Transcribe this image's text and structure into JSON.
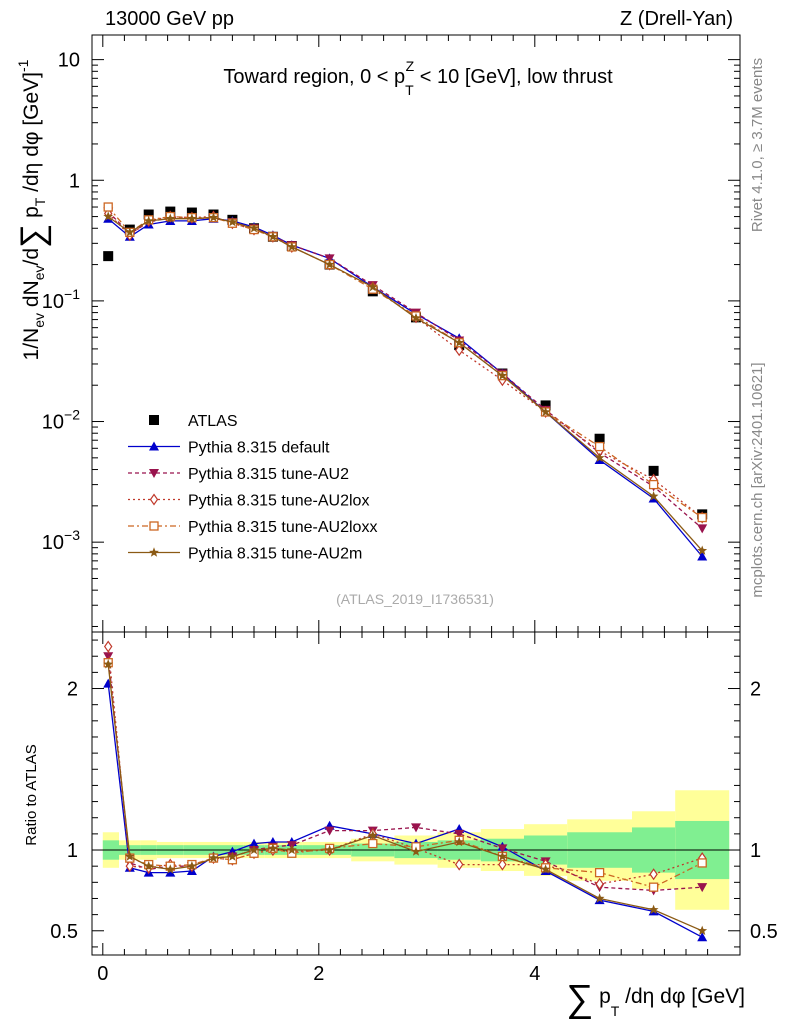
{
  "header": {
    "left": "13000 GeV pp",
    "right": "Z (Drell-Yan)"
  },
  "side_labels": {
    "rivet": "Rivet 4.1.0, ≥ 3.7M events",
    "mcplots": "mcplots.cern.ch [arXiv:2401.10621]"
  },
  "chart_data": [
    {
      "type": "line",
      "panel": "main",
      "title": "Toward region, 0 < p_T^Z < 10 [GeV], low thrust",
      "ylabel": "1/N_ev dN_ev/d Σ p_T /dη dφ [GeV]^-1",
      "yscale": "log",
      "xlim": [
        -0.1,
        5.9
      ],
      "ylim": [
        0.00018,
        16
      ],
      "y_ticks": [
        {
          "value": 0.001,
          "label": "10^-3",
          "base": "10",
          "exp": "−3"
        },
        {
          "value": 0.01,
          "label": "10^-2",
          "base": "10",
          "exp": "−2"
        },
        {
          "value": 0.1,
          "label": "10^-1",
          "base": "10",
          "exp": "−1"
        },
        {
          "value": 1,
          "label": "1",
          "base": "1",
          "exp": ""
        },
        {
          "value": 10,
          "label": "10",
          "base": "10",
          "exp": ""
        }
      ],
      "x": [
        0.05,
        0.25,
        0.425,
        0.625,
        0.825,
        1.025,
        1.2,
        1.4,
        1.575,
        1.75,
        2.1,
        2.5,
        2.9,
        3.3,
        3.7,
        4.1,
        4.6,
        5.1,
        5.55
      ],
      "reference": "(ATLAS_2019_I1736531)",
      "series": [
        {
          "name": "ATLAS",
          "color": "#000000",
          "marker": "square",
          "dash": "none",
          "values": [
            0.235,
            0.39,
            0.52,
            0.55,
            0.54,
            0.52,
            0.47,
            0.4,
            0.34,
            0.285,
            0.2,
            0.12,
            0.073,
            0.043,
            0.025,
            0.0136,
            0.0072,
            0.0039,
            0.0017
          ]
        },
        {
          "name": "Pythia 8.315 default",
          "color": "#0000cc",
          "marker": "triangle-up",
          "dash": "none",
          "values": [
            0.48,
            0.34,
            0.43,
            0.46,
            0.46,
            0.48,
            0.46,
            0.41,
            0.35,
            0.29,
            0.225,
            0.13,
            0.078,
            0.049,
            0.025,
            0.012,
            0.0048,
            0.0023,
            0.00076
          ]
        },
        {
          "name": "Pythia 8.315 tune-AU2",
          "color": "#99134d",
          "marker": "triangle-down",
          "dash": "4,3",
          "values": [
            0.55,
            0.36,
            0.45,
            0.49,
            0.48,
            0.49,
            0.45,
            0.4,
            0.345,
            0.29,
            0.225,
            0.135,
            0.08,
            0.047,
            0.025,
            0.0125,
            0.0055,
            0.0029,
            0.0013
          ]
        },
        {
          "name": "Pythia 8.315 tune-AU2lox",
          "color": "#c0392b",
          "marker": "diamond",
          "dash": "2,3",
          "values": [
            0.53,
            0.35,
            0.46,
            0.5,
            0.49,
            0.5,
            0.44,
            0.39,
            0.34,
            0.28,
            0.2,
            0.13,
            0.073,
            0.039,
            0.022,
            0.012,
            0.0057,
            0.0033,
            0.0016
          ]
        },
        {
          "name": "Pythia 8.315 tune-AU2loxx",
          "color": "#cc6622",
          "marker": "square-open",
          "dash": "6,3,2,3",
          "values": [
            0.6,
            0.37,
            0.47,
            0.5,
            0.49,
            0.49,
            0.44,
            0.39,
            0.34,
            0.28,
            0.2,
            0.125,
            0.075,
            0.045,
            0.024,
            0.012,
            0.0062,
            0.003,
            0.0016
          ]
        },
        {
          "name": "Pythia 8.315 tune-AU2m",
          "color": "#8b5a14",
          "marker": "star",
          "dash": "none",
          "values": [
            0.5,
            0.37,
            0.46,
            0.48,
            0.48,
            0.49,
            0.45,
            0.4,
            0.34,
            0.28,
            0.2,
            0.13,
            0.072,
            0.045,
            0.024,
            0.012,
            0.005,
            0.0024,
            0.00085
          ]
        }
      ]
    },
    {
      "type": "line",
      "panel": "ratio",
      "ylabel": "Ratio to ATLAS",
      "xlabel": "Σ p_T /dη dφ [GeV]",
      "xlim": [
        -0.1,
        5.9
      ],
      "ylim": [
        0.35,
        2.35
      ],
      "x_ticks": [
        0,
        2,
        4
      ],
      "y_ticks": [
        0.5,
        1,
        2
      ],
      "x": [
        0.05,
        0.25,
        0.425,
        0.625,
        0.825,
        1.025,
        1.2,
        1.4,
        1.575,
        1.75,
        2.1,
        2.5,
        2.9,
        3.3,
        3.7,
        4.1,
        4.6,
        5.1,
        5.55
      ],
      "band_edges": [
        0.0,
        0.15,
        0.35,
        0.5,
        0.75,
        0.9,
        1.15,
        1.3,
        1.5,
        1.65,
        1.85,
        2.3,
        2.7,
        3.1,
        3.5,
        3.9,
        4.3,
        4.9,
        5.3,
        5.8
      ],
      "band_inner": [
        0.06,
        0.03,
        0.03,
        0.03,
        0.03,
        0.03,
        0.03,
        0.03,
        0.03,
        0.03,
        0.03,
        0.04,
        0.05,
        0.06,
        0.07,
        0.09,
        0.11,
        0.14,
        0.18
      ],
      "band_outer": [
        0.11,
        0.06,
        0.06,
        0.05,
        0.05,
        0.05,
        0.05,
        0.05,
        0.05,
        0.05,
        0.05,
        0.07,
        0.09,
        0.11,
        0.13,
        0.16,
        0.19,
        0.24,
        0.37
      ],
      "series": [
        {
          "name": "Pythia 8.315 default",
          "values": [
            2.03,
            0.89,
            0.86,
            0.86,
            0.87,
            0.96,
            0.99,
            1.04,
            1.05,
            1.05,
            1.15,
            1.1,
            1.04,
            1.13,
            1.02,
            0.87,
            0.69,
            0.62,
            0.46
          ]
        },
        {
          "name": "Pythia 8.315 tune-AU2",
          "values": [
            2.2,
            0.92,
            0.88,
            0.9,
            0.9,
            0.95,
            0.96,
            1.0,
            1.02,
            1.03,
            1.12,
            1.12,
            1.14,
            1.1,
            1.01,
            0.93,
            0.77,
            0.75,
            0.77
          ]
        },
        {
          "name": "Pythia 8.315 tune-AU2lox",
          "values": [
            2.26,
            0.9,
            0.89,
            0.91,
            0.9,
            0.95,
            0.94,
            0.98,
            1.0,
            0.99,
            1.0,
            1.1,
            1.01,
            0.91,
            0.91,
            0.91,
            0.79,
            0.85,
            0.95
          ]
        },
        {
          "name": "Pythia 8.315 tune-AU2loxx",
          "values": [
            2.16,
            0.95,
            0.91,
            0.9,
            0.91,
            0.95,
            0.94,
            0.98,
            1.01,
            0.98,
            1.01,
            1.04,
            1.02,
            1.06,
            0.96,
            0.89,
            0.86,
            0.77,
            0.92
          ]
        },
        {
          "name": "Pythia 8.315 tune-AU2m",
          "values": [
            2.15,
            0.96,
            0.9,
            0.88,
            0.9,
            0.95,
            0.96,
            1.0,
            1.01,
            1.0,
            1.0,
            1.09,
            0.99,
            1.05,
            0.96,
            0.88,
            0.7,
            0.63,
            0.5
          ]
        }
      ]
    }
  ]
}
